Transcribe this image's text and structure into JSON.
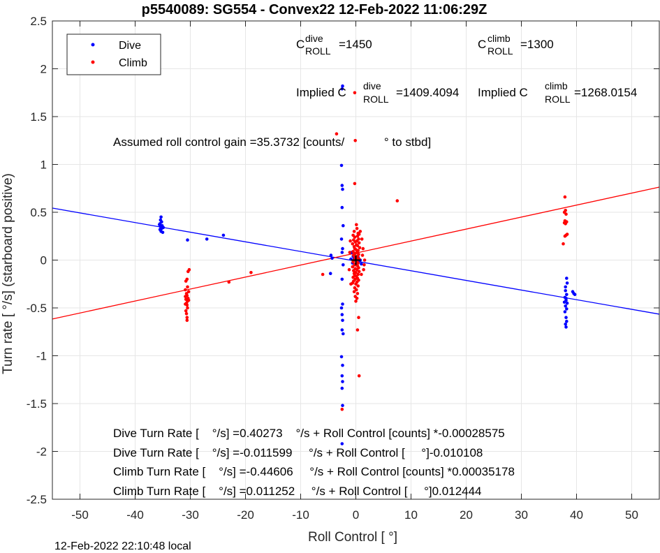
{
  "chart_data": {
    "type": "scatter",
    "title": "p5540089: SG554 - Convex22 12-Feb-2022 11:06:29Z",
    "xlabel": "Roll Control [   °]",
    "ylabel": "Turn rate [   °/s] (starboard positive)",
    "xlim": [
      -55,
      55
    ],
    "ylim": [
      -2.5,
      2.5
    ],
    "xticks": [
      -50,
      -40,
      -30,
      -20,
      -10,
      0,
      10,
      20,
      30,
      40,
      50
    ],
    "yticks": [
      -2.5,
      -2,
      -1.5,
      -1,
      -0.5,
      0,
      0.5,
      1,
      1.5,
      2,
      2.5
    ],
    "xtick_labels": [
      "-50",
      "-40",
      "-30",
      "-20",
      "-10",
      "0",
      "10",
      "20",
      "30",
      "40",
      "50"
    ],
    "ytick_labels": [
      "-2.5",
      "-2",
      "-1.5",
      "-1",
      "-0.5",
      "0",
      "0.5",
      "1",
      "1.5",
      "2",
      "2.5"
    ],
    "grid": true,
    "legend_position": "top-left",
    "series": [
      {
        "name": "Dive",
        "color": "#0000ff",
        "points": [
          [
            -35.3,
            0.45
          ],
          [
            -35.4,
            0.42
          ],
          [
            -35.2,
            0.4
          ],
          [
            -35.5,
            0.38
          ],
          [
            -35.1,
            0.36
          ],
          [
            -35.4,
            0.35
          ],
          [
            -35.2,
            0.33
          ],
          [
            -35.5,
            0.32
          ],
          [
            -35.3,
            0.3
          ],
          [
            -35.0,
            0.29
          ],
          [
            -35.6,
            0.37
          ],
          [
            -34.9,
            0.34
          ],
          [
            -30.5,
            0.21
          ],
          [
            -27.0,
            0.22
          ],
          [
            -24.0,
            0.26
          ],
          [
            -4.5,
            0.05
          ],
          [
            -4.3,
            0.02
          ],
          [
            -4.6,
            -0.14
          ],
          [
            -2.4,
            1.82
          ],
          [
            -2.5,
            1.79
          ],
          [
            -2.6,
            0.99
          ],
          [
            -2.5,
            0.78
          ],
          [
            -2.4,
            0.74
          ],
          [
            -2.5,
            0.55
          ],
          [
            -2.3,
            0.36
          ],
          [
            -2.6,
            0.22
          ],
          [
            -2.4,
            0.12
          ],
          [
            -2.5,
            0.08
          ],
          [
            -2.3,
            -0.05
          ],
          [
            -2.5,
            -0.2
          ],
          [
            -2.4,
            -0.46
          ],
          [
            -2.6,
            -0.5
          ],
          [
            -2.5,
            -0.57
          ],
          [
            -2.4,
            -0.63
          ],
          [
            -2.5,
            -0.73
          ],
          [
            -2.3,
            -0.77
          ],
          [
            -2.6,
            -1.01
          ],
          [
            -2.4,
            -1.1
          ],
          [
            -2.5,
            -1.21
          ],
          [
            -2.4,
            -1.27
          ],
          [
            -2.5,
            -1.34
          ],
          [
            -2.4,
            -1.52
          ],
          [
            -2.5,
            -1.92
          ],
          [
            -0.8,
            0.08
          ],
          [
            -0.5,
            0.04
          ],
          [
            -0.3,
            0.02
          ],
          [
            0.0,
            0.01
          ],
          [
            0.3,
            -0.01
          ],
          [
            0.5,
            -0.02
          ],
          [
            -0.6,
            -0.03
          ],
          [
            0.8,
            0.0
          ],
          [
            -0.2,
            -0.05
          ],
          [
            0.4,
            0.03
          ],
          [
            -0.9,
            0.01
          ],
          [
            1.0,
            -0.04
          ],
          [
            38.0,
            -0.32
          ],
          [
            38.2,
            -0.36
          ],
          [
            37.9,
            -0.39
          ],
          [
            38.1,
            -0.42
          ],
          [
            38.3,
            -0.45
          ],
          [
            38.0,
            -0.48
          ],
          [
            38.2,
            -0.51
          ],
          [
            37.9,
            -0.54
          ],
          [
            38.1,
            -0.6
          ],
          [
            38.2,
            -0.64
          ],
          [
            38.0,
            -0.67
          ],
          [
            38.1,
            -0.7
          ],
          [
            38.2,
            -0.19
          ],
          [
            38.3,
            -0.24
          ],
          [
            38.0,
            -0.28
          ],
          [
            38.1,
            -0.4
          ],
          [
            37.8,
            -0.44
          ],
          [
            39.3,
            -0.33
          ],
          [
            39.5,
            -0.35
          ],
          [
            39.7,
            -0.36
          ]
        ]
      },
      {
        "name": "Climb",
        "color": "#ff0000",
        "points": [
          [
            -30.2,
            -0.1
          ],
          [
            -30.4,
            -0.12
          ],
          [
            -30.6,
            -0.2
          ],
          [
            -30.8,
            -0.22
          ],
          [
            -30.5,
            -0.28
          ],
          [
            -30.9,
            -0.31
          ],
          [
            -30.3,
            -0.33
          ],
          [
            -30.7,
            -0.35
          ],
          [
            -30.6,
            -0.37
          ],
          [
            -30.9,
            -0.38
          ],
          [
            -30.4,
            -0.4
          ],
          [
            -30.8,
            -0.41
          ],
          [
            -30.5,
            -0.43
          ],
          [
            -30.7,
            -0.45
          ],
          [
            -30.6,
            -0.47
          ],
          [
            -30.5,
            -0.5
          ],
          [
            -30.8,
            -0.53
          ],
          [
            -30.7,
            -0.56
          ],
          [
            -30.6,
            -0.6
          ],
          [
            -30.6,
            -0.63
          ],
          [
            -30.3,
            -0.42
          ],
          [
            -30.9,
            -0.46
          ],
          [
            -23.0,
            -0.23
          ],
          [
            -19.0,
            -0.13
          ],
          [
            -6.0,
            -0.15
          ],
          [
            -3.5,
            1.32
          ],
          [
            -2.5,
            -1.56
          ],
          [
            -0.2,
            1.75
          ],
          [
            -0.1,
            1.25
          ],
          [
            -0.2,
            0.8
          ],
          [
            0.1,
            0.37
          ],
          [
            0.2,
            0.33
          ],
          [
            -0.3,
            0.3
          ],
          [
            0.4,
            0.28
          ],
          [
            0.6,
            0.27
          ],
          [
            -0.5,
            0.26
          ],
          [
            0.3,
            0.25
          ],
          [
            -0.2,
            0.24
          ],
          [
            0.5,
            0.22
          ],
          [
            -0.4,
            0.21
          ],
          [
            0.2,
            0.2
          ],
          [
            -0.1,
            0.19
          ],
          [
            0.6,
            0.18
          ],
          [
            -0.6,
            0.17
          ],
          [
            0.1,
            0.16
          ],
          [
            0.3,
            0.15
          ],
          [
            -0.3,
            0.14
          ],
          [
            0.7,
            0.13
          ],
          [
            -0.2,
            0.12
          ],
          [
            0.0,
            0.11
          ],
          [
            0.4,
            0.1
          ],
          [
            -0.5,
            0.09
          ],
          [
            0.2,
            0.08
          ],
          [
            -0.1,
            0.07
          ],
          [
            0.5,
            0.06
          ],
          [
            -0.4,
            0.05
          ],
          [
            0.3,
            0.04
          ],
          [
            -0.2,
            0.03
          ],
          [
            0.1,
            0.02
          ],
          [
            0.6,
            0.01
          ],
          [
            -0.3,
            0.0
          ],
          [
            0.2,
            -0.01
          ],
          [
            -0.5,
            -0.02
          ],
          [
            0.4,
            -0.03
          ],
          [
            0.0,
            -0.04
          ],
          [
            -0.2,
            -0.05
          ],
          [
            0.3,
            -0.06
          ],
          [
            -0.6,
            -0.07
          ],
          [
            0.5,
            -0.08
          ],
          [
            -0.1,
            -0.09
          ],
          [
            0.2,
            -0.1
          ],
          [
            -0.4,
            -0.11
          ],
          [
            0.6,
            -0.12
          ],
          [
            0.0,
            -0.13
          ],
          [
            -0.3,
            -0.14
          ],
          [
            0.4,
            -0.15
          ],
          [
            -0.2,
            -0.16
          ],
          [
            0.1,
            -0.17
          ],
          [
            -0.5,
            -0.18
          ],
          [
            0.3,
            -0.19
          ],
          [
            -0.1,
            -0.2
          ],
          [
            0.5,
            -0.21
          ],
          [
            -0.4,
            -0.22
          ],
          [
            0.2,
            -0.23
          ],
          [
            -0.6,
            -0.24
          ],
          [
            0.0,
            -0.25
          ],
          [
            0.4,
            -0.27
          ],
          [
            -0.2,
            -0.29
          ],
          [
            0.1,
            -0.31
          ],
          [
            -0.3,
            -0.33
          ],
          [
            0.3,
            -0.35
          ],
          [
            -0.1,
            -0.38
          ],
          [
            0.2,
            -0.4
          ],
          [
            0.0,
            -0.43
          ],
          [
            1.2,
            0.05
          ],
          [
            1.4,
            -0.1
          ],
          [
            1.0,
            -0.15
          ],
          [
            1.3,
            0.12
          ],
          [
            -1.0,
            0.2
          ],
          [
            -1.2,
            -0.1
          ],
          [
            1.5,
            -0.05
          ],
          [
            1.1,
            0.22
          ],
          [
            -0.9,
            -0.25
          ],
          [
            1.6,
            0.0
          ],
          [
            0.8,
            0.3
          ],
          [
            -1.1,
            0.08
          ],
          [
            0.5,
            -0.6
          ],
          [
            0.3,
            -0.73
          ],
          [
            0.6,
            -1.21
          ],
          [
            7.5,
            0.62
          ],
          [
            37.9,
            0.66
          ],
          [
            38.0,
            0.52
          ],
          [
            37.8,
            0.5
          ],
          [
            38.1,
            0.48
          ],
          [
            37.9,
            0.41
          ],
          [
            38.2,
            0.4
          ],
          [
            37.8,
            0.39
          ],
          [
            38.0,
            0.38
          ],
          [
            38.3,
            0.27
          ],
          [
            37.9,
            0.25
          ],
          [
            37.6,
            0.17
          ],
          [
            38.1,
            0.26
          ]
        ]
      }
    ],
    "fit_lines": [
      {
        "name": "Dive fit",
        "color": "#0000ff",
        "x": [
          -55,
          55
        ],
        "y": [
          0.5436,
          -0.5652
        ]
      },
      {
        "name": "Climb fit",
        "color": "#ff0000",
        "x": [
          -55,
          55
        ],
        "y": [
          -0.616,
          0.7629
        ]
      }
    ]
  },
  "legend": {
    "items": [
      {
        "label": "Dive",
        "color": "#0000ff"
      },
      {
        "label": "Climb",
        "color": "#ff0000"
      }
    ]
  },
  "annotations": {
    "c_dive": {
      "base": "C",
      "sup": "dive",
      "sub": "ROLL",
      "value": "=1450"
    },
    "c_climb": {
      "base": "C",
      "sup": "climb",
      "sub": "ROLL",
      "value": "=1300"
    },
    "implied_dive": {
      "base": "Implied C",
      "sup": "dive",
      "sub": "ROLL",
      "value": "=1409.4094"
    },
    "implied_climb": {
      "base": "Implied C",
      "sup": "climb",
      "sub": "ROLL",
      "value": "=1268.0154"
    },
    "gain": "Assumed roll control gain =35.3732 [counts/            ° to stbd]",
    "eq1": "Dive Turn Rate [    °/s] =0.40273    °/s + Roll Control [counts] *-0.00028575",
    "eq2": "Dive Turn Rate [    °/s] =-0.011599     °/s + Roll Control [     °]-0.010108",
    "eq3": "Climb Turn Rate [    °/s] =-0.44606     °/s + Roll Control [counts] *0.00035178",
    "eq4": "Climb Turn Rate [    °/s] =0.011252     °/s + Roll Control [     °]0.012444"
  },
  "footer": "12-Feb-2022 22:10:48 local"
}
